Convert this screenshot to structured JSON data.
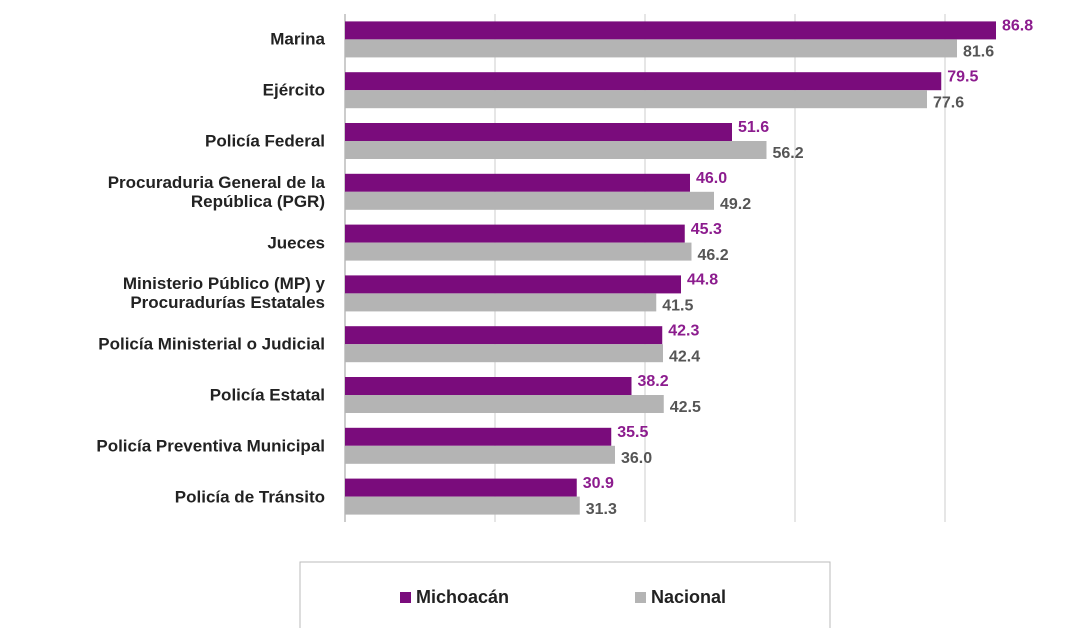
{
  "chart_data": {
    "type": "barh",
    "categories": [
      "Marina",
      "Ejército",
      "Policía Federal",
      "Procuraduria General de la\nRepública (PGR)",
      "Jueces",
      "Ministerio Público (MP) y\nProcuradurías Estatales",
      "Policía Ministerial o Judicial",
      "Policía Estatal",
      "Policía Preventiva Municipal",
      "Policía de Tránsito"
    ],
    "series": [
      {
        "name": "Michoacán",
        "color": "#7a0c7c",
        "values": [
          86.8,
          79.5,
          51.6,
          46.0,
          45.3,
          44.8,
          42.3,
          38.2,
          35.5,
          30.9
        ],
        "value_labels": [
          "86.8",
          "79.5",
          "51.6",
          "46.0",
          "45.3",
          "44.8",
          "42.3",
          "38.2",
          "35.5",
          "30.9"
        ]
      },
      {
        "name": "Nacional",
        "color": "#b4b4b4",
        "values": [
          81.6,
          77.6,
          56.2,
          49.2,
          46.2,
          41.5,
          42.4,
          42.5,
          36.0,
          31.3
        ],
        "value_labels": [
          "81.6",
          "77.6",
          "56.2",
          "49.2",
          "46.2",
          "41.5",
          "42.4",
          "42.5",
          "36.0",
          "31.3"
        ]
      }
    ],
    "xlim": [
      0,
      90
    ],
    "xticks": [
      0,
      20,
      40,
      60,
      80
    ],
    "grid": true,
    "legend": "bottom"
  }
}
